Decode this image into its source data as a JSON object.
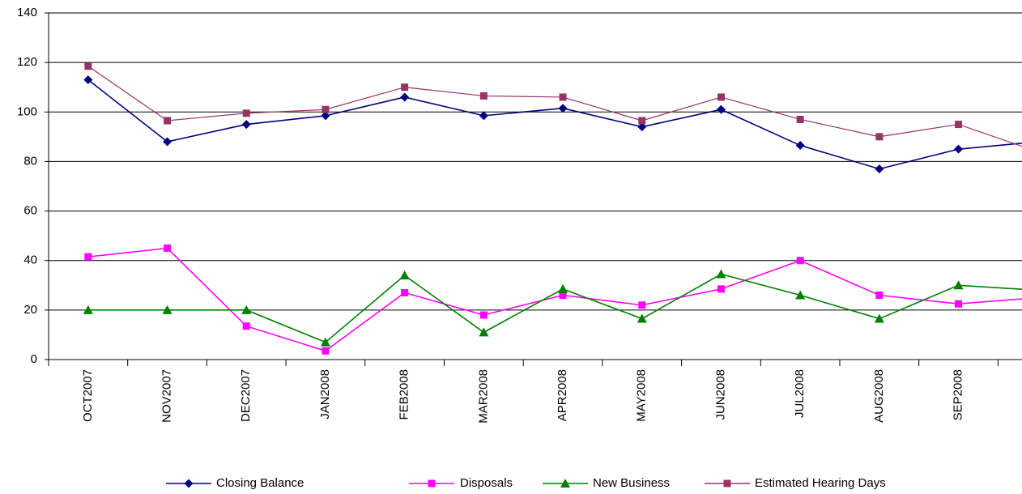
{
  "chart_data": {
    "type": "line",
    "categories": [
      "OCT2007",
      "NOV2007",
      "DEC2007",
      "JAN2008",
      "FEB2008",
      "MAR2008",
      "APR2008",
      "MAY2008",
      "JUN2008",
      "JUL2008",
      "AUG2008",
      "SEP2008",
      null
    ],
    "series": [
      {
        "name": "Closing Balance",
        "color": "#000080",
        "marker": "diamond",
        "values": [
          113,
          88,
          95,
          98.5,
          106,
          98.5,
          101.5,
          94,
          101,
          86.5,
          77,
          85,
          88
        ]
      },
      {
        "name": "Disposals",
        "color": "#ff00ff",
        "marker": "square",
        "values": [
          41.5,
          45,
          13.5,
          3.5,
          27,
          18,
          26,
          22,
          28.5,
          40,
          26,
          22.5,
          25
        ]
      },
      {
        "name": "New Business",
        "color": "#008000",
        "marker": "triangle",
        "values": [
          20,
          20,
          20,
          7,
          34,
          11,
          28.5,
          16.5,
          34.5,
          26,
          16.5,
          30,
          28
        ]
      },
      {
        "name": "Estimated Hearing Days",
        "color": "#993366",
        "marker": "square",
        "values": [
          118.5,
          96.5,
          99.5,
          101,
          110,
          106.5,
          106,
          96.5,
          106,
          97,
          90,
          95,
          84
        ]
      }
    ],
    "ylim": [
      0,
      140
    ],
    "yticks": [
      0,
      20,
      40,
      60,
      80,
      100,
      120,
      140
    ],
    "grid": true,
    "legend": "bottom"
  }
}
